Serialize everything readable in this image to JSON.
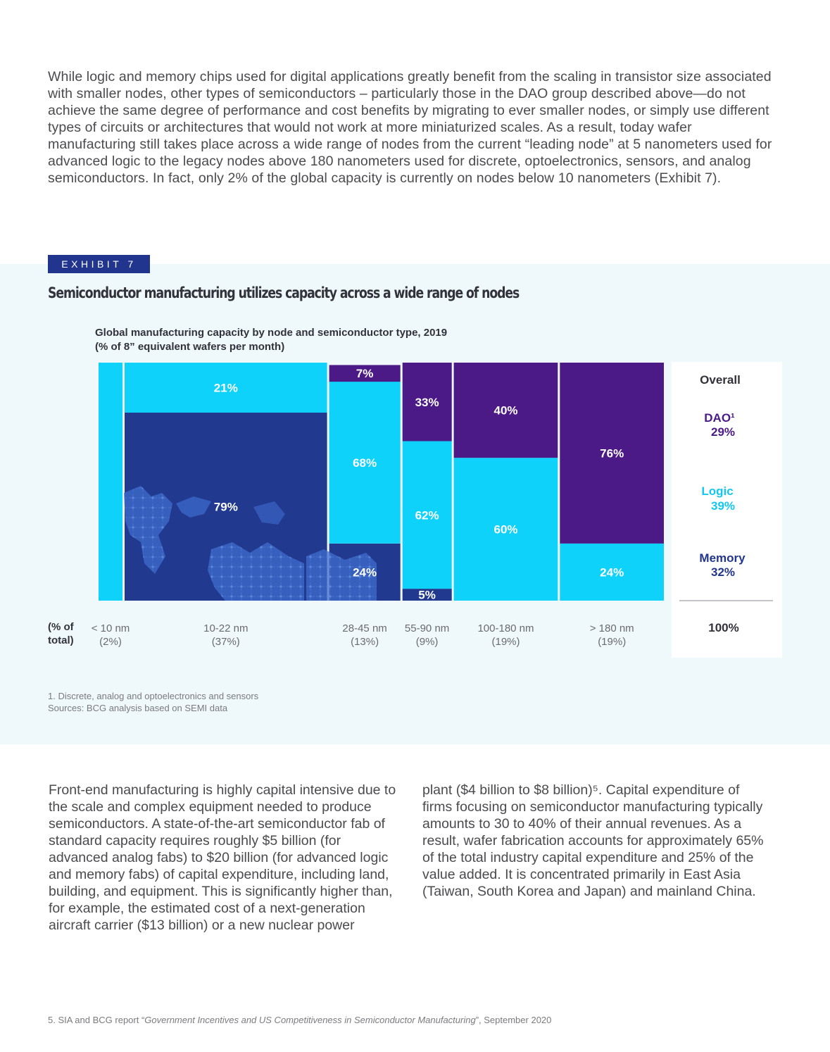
{
  "intro_paragraph": "While logic and memory chips used for digital applications greatly benefit from the scaling in transistor size associated with smaller nodes, other types of semiconductors – particularly those in the DAO group described above—do not achieve the same degree of performance and cost benefits by migrating to ever smaller nodes, or simply use different types of circuits or architectures that would not work at more miniaturized scales. As a result, today wafer manufacturing still takes place across a wide range of nodes from the current “leading node” at 5 nanometers used for advanced logic to the legacy nodes above 180 nanometers used for discrete, optoelectronics, sensors, and analog semiconductors. In fact, only 2% of the global capacity is currently on nodes below 10 nanometers (Exhibit 7).",
  "exhibit": {
    "tag": "EXHIBIT 7",
    "title": "Semiconductor manufacturing utilizes capacity across a wide range of nodes",
    "chart_title_line1": "Global manufacturing capacity by node and semiconductor type, 2019",
    "chart_title_line2": "(% of 8” equivalent wafers per month)",
    "footnote_line1": "1. Discrete, analog and optoelectronics and sensors",
    "footnote_line2": "Sources: BCG analysis based on SEMI data"
  },
  "chart_data": {
    "type": "bar",
    "subtype": "marimekko",
    "x_axis_caption_line1": "(% of",
    "x_axis_caption_line2": "total)",
    "categories": [
      "< 10 nm",
      "10-22 nm",
      "28-45 nm",
      "55-90 nm",
      "100-180 nm",
      "> 180 nm"
    ],
    "category_share_labels": [
      "(2%)",
      "(37%)",
      "(13%)",
      "(9%)",
      "(19%)",
      "(19%)"
    ],
    "category_share": [
      2,
      37,
      13,
      9,
      19,
      19
    ],
    "series": [
      {
        "name": "Memory",
        "color": "#21398f",
        "values": [
          0,
          79,
          24,
          5,
          0,
          0
        ],
        "labels": [
          "",
          "79%",
          "24%",
          "5%",
          "",
          ""
        ]
      },
      {
        "name": "Logic",
        "color": "#0fd2fa",
        "values": [
          100,
          21,
          68,
          62,
          60,
          24
        ],
        "labels": [
          "",
          "21%",
          "68%",
          "62%",
          "60%",
          "24%"
        ]
      },
      {
        "name": "DAO",
        "color": "#4b1a87",
        "values": [
          0,
          0,
          7,
          33,
          40,
          76
        ],
        "labels": [
          "",
          "",
          "7%",
          "33%",
          "40%",
          "76%"
        ]
      }
    ],
    "overall": {
      "heading": "Overall",
      "dao_label": "DAO¹",
      "dao_value": "29%",
      "logic_label": "Logic",
      "logic_value": "39%",
      "memory_label": "Memory",
      "memory_value": "32%",
      "total": "100%"
    },
    "colors": {
      "memory": "#21398f",
      "logic": "#0fd2fa",
      "dao": "#4b1a87",
      "memory_text": "#21358f",
      "logic_text": "#12c8f0",
      "dao_text": "#4b1a87"
    }
  },
  "body_col1": "Front-end manufacturing is highly capital intensive due to the scale and complex equipment needed to produce semiconductors. A state-of-the-art semiconductor fab of standard capacity requires roughly $5 billion (for advanced analog fabs) to $20 billion (for advanced logic and memory fabs) of capital expenditure, including land, building, and equipment. This is significantly higher than, for example, the estimated cost of a next-generation aircraft carrier ($13 billion) or a new nuclear power",
  "body_col2": "plant ($4 billion to $8 billion)⁵. Capital expenditure of firms focusing on semiconductor manufacturing typically amounts to 30 to 40% of their annual revenues. As a result, wafer fabrication accounts for approximately 65% of the total industry capital expenditure and 25% of the value added. It is concentrated primarily in East Asia (Taiwan, South Korea and Japan) and mainland China.",
  "footnote5": {
    "prefix": "5. SIA and BCG report “",
    "title": "Government Incentives and US Competitiveness in Semiconductor Manufacturing",
    "suffix": "”, September 2020"
  }
}
